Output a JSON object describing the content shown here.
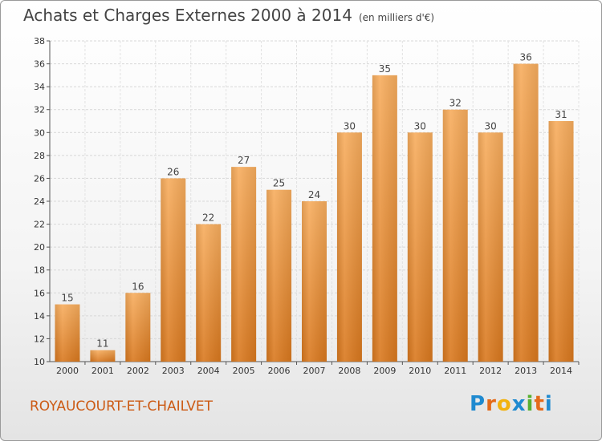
{
  "header": {
    "title": "Achats et Charges Externes 2000 à 2014",
    "unit": "(en milliers d'€)"
  },
  "footer": {
    "commune": "ROYAUCOURT-ET-CHAILVET",
    "logo": "Proxiti"
  },
  "colors": {
    "bar_light": "#f7ad5e",
    "bar_dark": "#d9781e",
    "commune": "#cc5a14"
  },
  "chart_data": {
    "type": "bar",
    "title": "Achats et Charges Externes 2000 à 2014",
    "subtitle": "(en milliers d'€)",
    "categories": [
      "2000",
      "2001",
      "2002",
      "2003",
      "2004",
      "2005",
      "2006",
      "2007",
      "2008",
      "2009",
      "2010",
      "2011",
      "2012",
      "2013",
      "2014"
    ],
    "values": [
      15,
      11,
      16,
      26,
      22,
      27,
      25,
      24,
      30,
      35,
      30,
      32,
      30,
      36,
      31
    ],
    "ylim": [
      10,
      38
    ],
    "yticks": [
      10,
      12,
      14,
      16,
      18,
      20,
      22,
      24,
      26,
      28,
      30,
      32,
      34,
      36,
      38
    ],
    "grid": true,
    "xlabel": "",
    "ylabel": ""
  }
}
